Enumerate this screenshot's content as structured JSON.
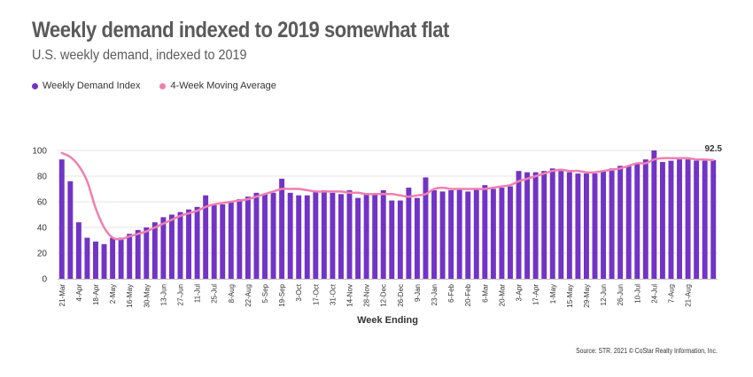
{
  "title": "Weekly demand indexed to 2019 somewhat flat",
  "subtitle": "U.S. weekly demand, indexed to 2019",
  "source": "Source: STR. 2021 © CoStar Realty Information, Inc.",
  "colors": {
    "bar": "#7233c6",
    "line": "#f07fb0",
    "grid": "#e6e6e6"
  },
  "chart_data": {
    "type": "bar",
    "xlabel": "Week Ending",
    "ylabel": "",
    "ylim": [
      0,
      100
    ],
    "yticks": [
      0,
      20,
      40,
      60,
      80,
      100
    ],
    "grid": true,
    "legend_position": "top-left",
    "end_label": "92.5",
    "tick_labels": [
      "21-Mar",
      "4-Apr",
      "18-Apr",
      "2-May",
      "16-May",
      "30-May",
      "13-Jun",
      "27-Jun",
      "11-Jul",
      "25-Jul",
      "8-Aug",
      "22-Aug",
      "5-Sep",
      "19-Sep",
      "3-Oct",
      "17-Oct",
      "31-Oct",
      "14-Nov",
      "28-Nov",
      "12-Dec",
      "26-Dec",
      "9-Jan",
      "23-Jan",
      "6-Feb",
      "20-Feb",
      "6-Mar",
      "20-Mar",
      "3-Apr",
      "17-Apr",
      "1-May",
      "15-May",
      "29-May",
      "12-Jun",
      "26-Jun",
      "10-Jul",
      "24-Jul",
      "7-Aug",
      "21-Aug"
    ],
    "tick_every": 2,
    "series": [
      {
        "name": "Weekly Demand Index",
        "type": "bar",
        "values": [
          93,
          76,
          44,
          32,
          29,
          27,
          32,
          32,
          35,
          38,
          40,
          44,
          48,
          50,
          52,
          54,
          56,
          65,
          58,
          58,
          60,
          62,
          64,
          67,
          66,
          67,
          78,
          67,
          65,
          65,
          68,
          69,
          67,
          66,
          69,
          63,
          66,
          66,
          69,
          61,
          61,
          71,
          63,
          79,
          69,
          68,
          69,
          70,
          68,
          70,
          73,
          70,
          71,
          72,
          84,
          83,
          83,
          84,
          86,
          84,
          83,
          82,
          82,
          82,
          84,
          86,
          88,
          88,
          90,
          93,
          100,
          91,
          92,
          93,
          93,
          92,
          92,
          92.5
        ]
      },
      {
        "name": "4-Week Moving Average",
        "type": "line",
        "values": [
          98,
          95,
          88,
          76,
          55,
          40,
          32,
          31,
          33,
          35,
          37,
          40,
          43,
          46,
          49,
          51,
          53,
          56,
          58,
          59,
          60,
          61,
          62,
          64,
          66,
          68,
          70,
          70,
          70,
          69,
          68,
          68,
          68,
          68,
          67,
          67,
          66,
          66,
          66,
          66,
          65,
          64,
          65,
          66,
          70,
          71,
          70,
          70,
          70,
          70,
          70,
          71,
          72,
          73,
          76,
          78,
          80,
          82,
          84,
          85,
          84,
          84,
          83,
          83,
          84,
          85,
          86,
          88,
          90,
          90,
          93,
          94,
          94,
          94,
          94,
          93,
          93,
          92.5
        ]
      }
    ]
  }
}
